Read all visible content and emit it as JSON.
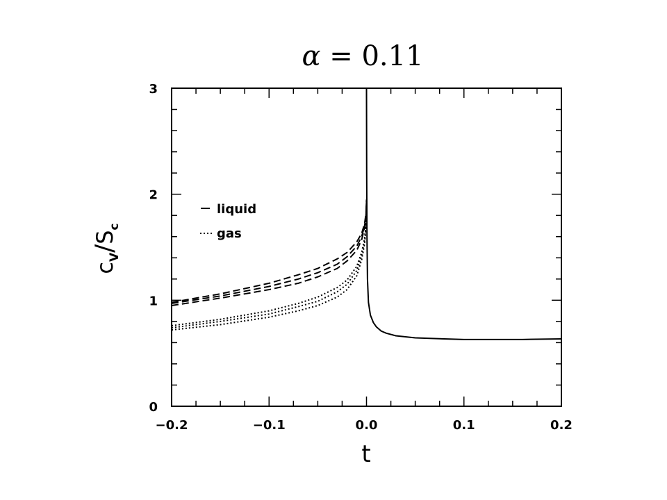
{
  "chart_data": {
    "type": "line",
    "title_parts": {
      "symbol": "α",
      "rest": " = 0.11"
    },
    "xlabel": "t",
    "ylabel_parts": {
      "num": "c",
      "num_sub": "V",
      "den": "S",
      "den_sub": "c"
    },
    "xlim": [
      -0.2,
      0.2
    ],
    "ylim": [
      0,
      3
    ],
    "xticks": [
      {
        "value": -0.2,
        "label": "−0.2"
      },
      {
        "value": -0.1,
        "label": "−0.1"
      },
      {
        "value": 0.0,
        "label": "0.0"
      },
      {
        "value": 0.1,
        "label": "0.1"
      },
      {
        "value": 0.2,
        "label": "0.2"
      }
    ],
    "yticks": [
      {
        "value": 0,
        "label": "0"
      },
      {
        "value": 1,
        "label": "1"
      },
      {
        "value": 2,
        "label": "2"
      },
      {
        "value": 3,
        "label": "3"
      }
    ],
    "legend": {
      "position": "upper-left",
      "entries": [
        {
          "label": "liquid",
          "style": "dashed"
        },
        {
          "label": "gas",
          "style": "dotted"
        }
      ]
    },
    "series": [
      {
        "style": "solid",
        "x": [
          0.0,
          0.0002,
          0.0005,
          0.001,
          0.002,
          0.004,
          0.007,
          0.01,
          0.015,
          0.02,
          0.03,
          0.05,
          0.08,
          0.1,
          0.13,
          0.16,
          0.2
        ],
        "y": [
          3.0,
          2.2,
          1.6,
          1.2,
          0.98,
          0.86,
          0.79,
          0.75,
          0.71,
          0.69,
          0.665,
          0.645,
          0.635,
          0.63,
          0.63,
          0.63,
          0.635
        ]
      },
      {
        "style": "dashed",
        "x": [
          -0.2,
          -0.15,
          -0.1,
          -0.07,
          -0.05,
          -0.03,
          -0.02,
          -0.01,
          -0.005,
          -0.002,
          -0.0005,
          0.0
        ],
        "y": [
          0.98,
          1.06,
          1.16,
          1.24,
          1.3,
          1.39,
          1.45,
          1.55,
          1.63,
          1.72,
          1.82,
          1.95
        ]
      },
      {
        "style": "dashed",
        "x": [
          -0.2,
          -0.15,
          -0.1,
          -0.07,
          -0.05,
          -0.03,
          -0.02,
          -0.01,
          -0.005,
          -0.002,
          -0.0005,
          0.0
        ],
        "y": [
          0.97,
          1.04,
          1.13,
          1.2,
          1.26,
          1.34,
          1.41,
          1.51,
          1.6,
          1.7,
          1.8,
          1.93
        ]
      },
      {
        "style": "dashed",
        "x": [
          -0.2,
          -0.15,
          -0.1,
          -0.07,
          -0.05,
          -0.03,
          -0.02,
          -0.01,
          -0.005,
          -0.002,
          -0.0005,
          0.0
        ],
        "y": [
          0.95,
          1.02,
          1.1,
          1.16,
          1.22,
          1.3,
          1.37,
          1.47,
          1.57,
          1.68,
          1.79,
          1.92
        ]
      },
      {
        "style": "dotted",
        "x": [
          -0.2,
          -0.15,
          -0.1,
          -0.07,
          -0.05,
          -0.03,
          -0.02,
          -0.01,
          -0.005,
          -0.002,
          -0.0005,
          0.0
        ],
        "y": [
          0.76,
          0.82,
          0.9,
          0.97,
          1.03,
          1.12,
          1.19,
          1.32,
          1.45,
          1.58,
          1.72,
          1.88
        ]
      },
      {
        "style": "dotted",
        "x": [
          -0.2,
          -0.15,
          -0.1,
          -0.07,
          -0.05,
          -0.03,
          -0.02,
          -0.01,
          -0.005,
          -0.002,
          -0.0005,
          0.0
        ],
        "y": [
          0.74,
          0.8,
          0.87,
          0.94,
          0.99,
          1.08,
          1.15,
          1.28,
          1.42,
          1.56,
          1.71,
          1.87
        ]
      },
      {
        "style": "dotted",
        "x": [
          -0.2,
          -0.15,
          -0.1,
          -0.07,
          -0.05,
          -0.03,
          -0.02,
          -0.01,
          -0.005,
          -0.002,
          -0.0005,
          0.0
        ],
        "y": [
          0.72,
          0.77,
          0.84,
          0.9,
          0.95,
          1.03,
          1.1,
          1.23,
          1.38,
          1.53,
          1.69,
          1.86
        ]
      }
    ]
  }
}
